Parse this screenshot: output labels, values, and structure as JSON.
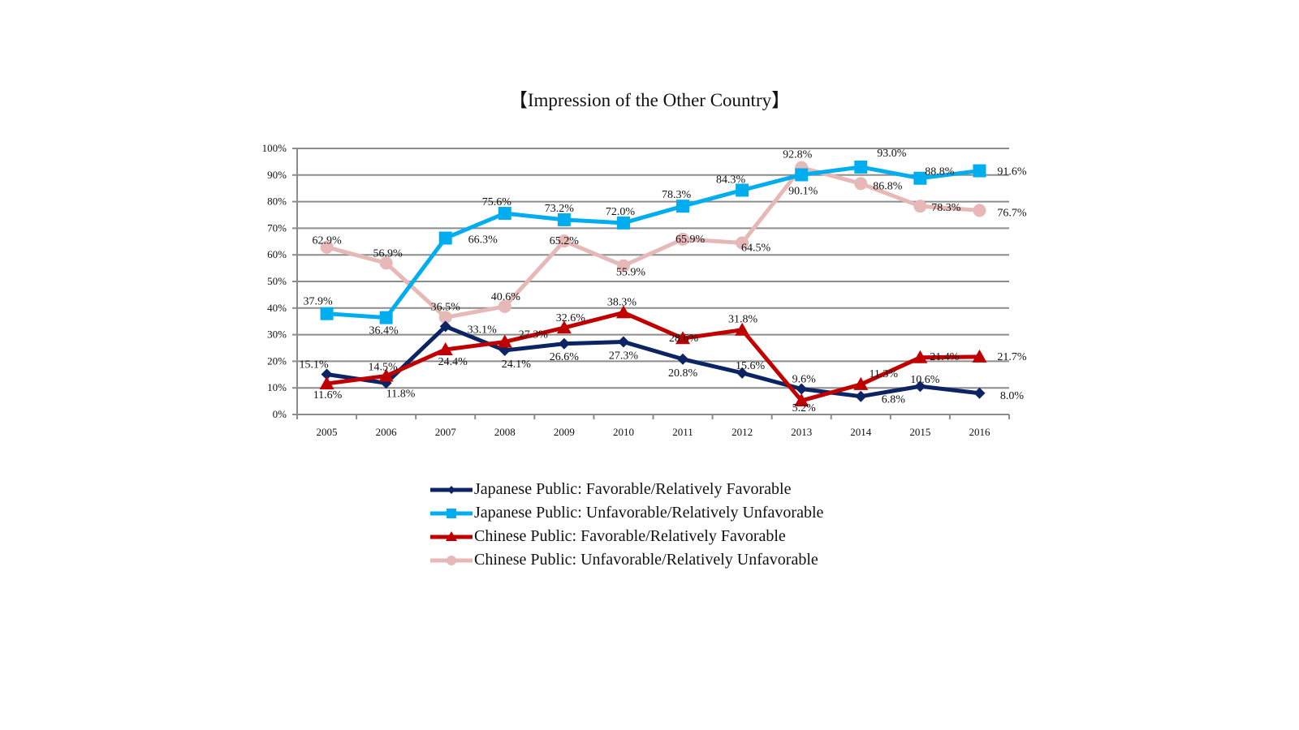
{
  "chart_data": {
    "type": "line",
    "title": "【Impression of the Other Country】",
    "xlabel": "",
    "ylabel": "",
    "ylim": [
      0,
      100
    ],
    "y_ticks": [
      "0%",
      "10%",
      "20%",
      "30%",
      "40%",
      "50%",
      "60%",
      "70%",
      "80%",
      "90%",
      "100%"
    ],
    "grid": true,
    "legend_position": "bottom",
    "categories": [
      "2005",
      "2006",
      "2007",
      "2008",
      "2009",
      "2010",
      "2011",
      "2012",
      "2013",
      "2014",
      "2015",
      "2016"
    ],
    "series": [
      {
        "name": "Japanese Public: Favorable/Relatively Favorable",
        "color": "#0d2464",
        "marker": "diamond",
        "values": [
          15.1,
          11.8,
          33.1,
          24.1,
          26.6,
          27.3,
          20.8,
          15.6,
          9.6,
          6.8,
          10.6,
          8.0
        ],
        "labels": [
          "15.1%",
          "11.8%",
          "33.1%",
          "24.1%",
          "26.6%",
          "27.3%",
          "20.8%",
          "15.6%",
          "9.6%",
          "6.8%",
          "10.6%",
          "8.0%"
        ]
      },
      {
        "name": "Japanese Public: Unfavorable/Relatively Unfavorable",
        "color": "#00aeef",
        "marker": "square",
        "values": [
          37.9,
          36.4,
          66.3,
          75.6,
          73.2,
          72.0,
          78.3,
          84.3,
          90.1,
          93.0,
          88.8,
          91.6
        ],
        "labels": [
          "37.9%",
          "36.4%",
          "66.3%",
          "75.6%",
          "73.2%",
          "72.0%",
          "78.3%",
          "84.3%",
          "90.1%",
          "93.0%",
          "88.8%",
          "91.6%"
        ]
      },
      {
        "name": "Chinese Public: Favorable/Relatively Favorable",
        "color": "#c00000",
        "marker": "triangle",
        "values": [
          11.6,
          14.5,
          24.4,
          27.3,
          32.6,
          38.3,
          28.6,
          31.8,
          5.2,
          11.3,
          21.4,
          21.7
        ],
        "labels": [
          "11.6%",
          "14.5%",
          "24.4%",
          "27.3%",
          "32.6%",
          "38.3%",
          "28.6%",
          "31.8%",
          "5.2%",
          "11.3%",
          "21.4%",
          "21.7%"
        ]
      },
      {
        "name": "Chinese Public: Unfavorable/Relatively Unfavorable",
        "color": "#e6b8b7",
        "marker": "circle",
        "values": [
          62.9,
          56.9,
          36.5,
          40.6,
          65.2,
          55.9,
          65.9,
          64.5,
          92.8,
          86.8,
          78.3,
          76.7
        ],
        "labels": [
          "62.9%",
          "56.9%",
          "36.5%",
          "40.6%",
          "65.2%",
          "55.9%",
          "65.9%",
          "64.5%",
          "92.8%",
          "86.8%",
          "78.3%",
          "76.7%"
        ]
      }
    ]
  }
}
